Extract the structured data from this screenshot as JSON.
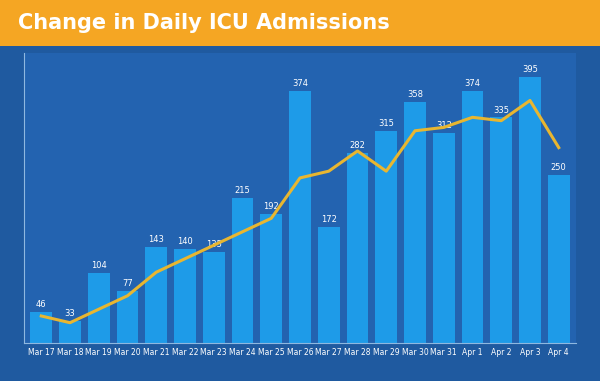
{
  "chart_data": {
    "type": "bar",
    "title": "Change in Daily ICU Admissions",
    "categories": [
      "Mar 17",
      "Mar 18",
      "Mar 19",
      "Mar 20",
      "Mar 21",
      "Mar 22",
      "Mar 23",
      "Mar 24",
      "Mar 25",
      "Mar 26",
      "Mar 27",
      "Mar 28",
      "Mar 29",
      "Mar 30",
      "Mar 31",
      "Apr 1",
      "Apr 2",
      "Apr 3",
      "Apr 4"
    ],
    "series": [
      {
        "type": "bar",
        "color": "#1e9be8",
        "data_labels": true,
        "values": [
          46,
          33,
          104,
          77,
          143,
          140,
          135,
          215,
          192,
          374,
          172,
          282,
          315,
          358,
          312,
          374,
          335,
          395,
          250
        ]
      },
      {
        "type": "line",
        "color": "#e8b630",
        "values": [
          40,
          30,
          50,
          70,
          105,
          125,
          145,
          165,
          185,
          245,
          255,
          285,
          255,
          315,
          320,
          335,
          330,
          360,
          290
        ]
      }
    ],
    "ylim": [
      0,
      430
    ],
    "yticks": [],
    "tick_labels": "x",
    "grid": false
  }
}
